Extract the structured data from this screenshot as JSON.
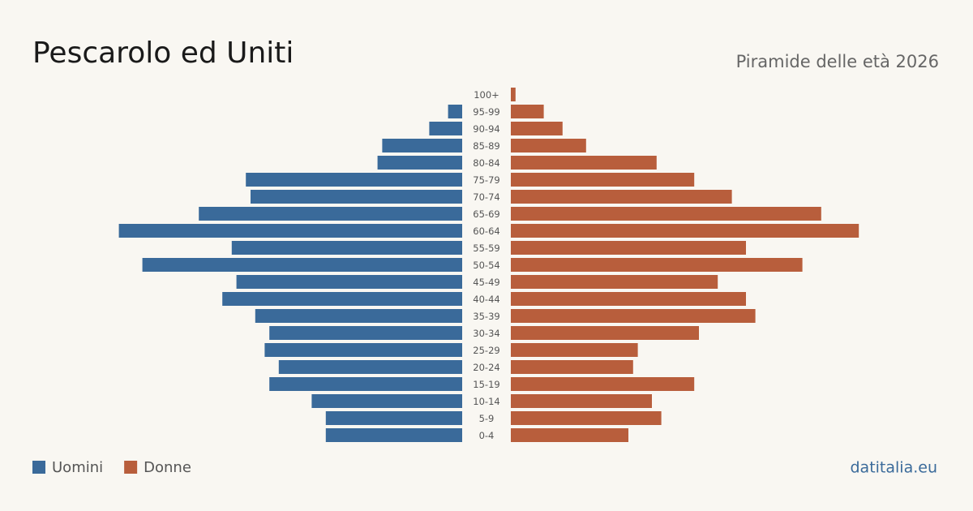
{
  "chart_data": {
    "type": "pyramid",
    "title": "Pescarolo ed Uniti",
    "subtitle": "Piramide delle età 2026",
    "categories": [
      "100+",
      "95-99",
      "90-94",
      "85-89",
      "80-84",
      "75-79",
      "70-74",
      "65-69",
      "60-64",
      "55-59",
      "50-54",
      "45-49",
      "40-44",
      "35-39",
      "30-34",
      "25-29",
      "20-24",
      "15-19",
      "10-14",
      "5-9",
      "0-4"
    ],
    "series": [
      {
        "name": "Uomini",
        "color": "#3a6a9a",
        "values": [
          0,
          3,
          7,
          17,
          18,
          46,
          45,
          56,
          73,
          49,
          68,
          48,
          51,
          44,
          41,
          42,
          39,
          41,
          32,
          29,
          29
        ]
      },
      {
        "name": "Donne",
        "color": "#b85e3c",
        "values": [
          1,
          7,
          11,
          16,
          31,
          39,
          47,
          66,
          74,
          50,
          62,
          44,
          50,
          52,
          40,
          27,
          26,
          39,
          30,
          32,
          25
        ]
      }
    ],
    "source": "datitalia.eu"
  }
}
